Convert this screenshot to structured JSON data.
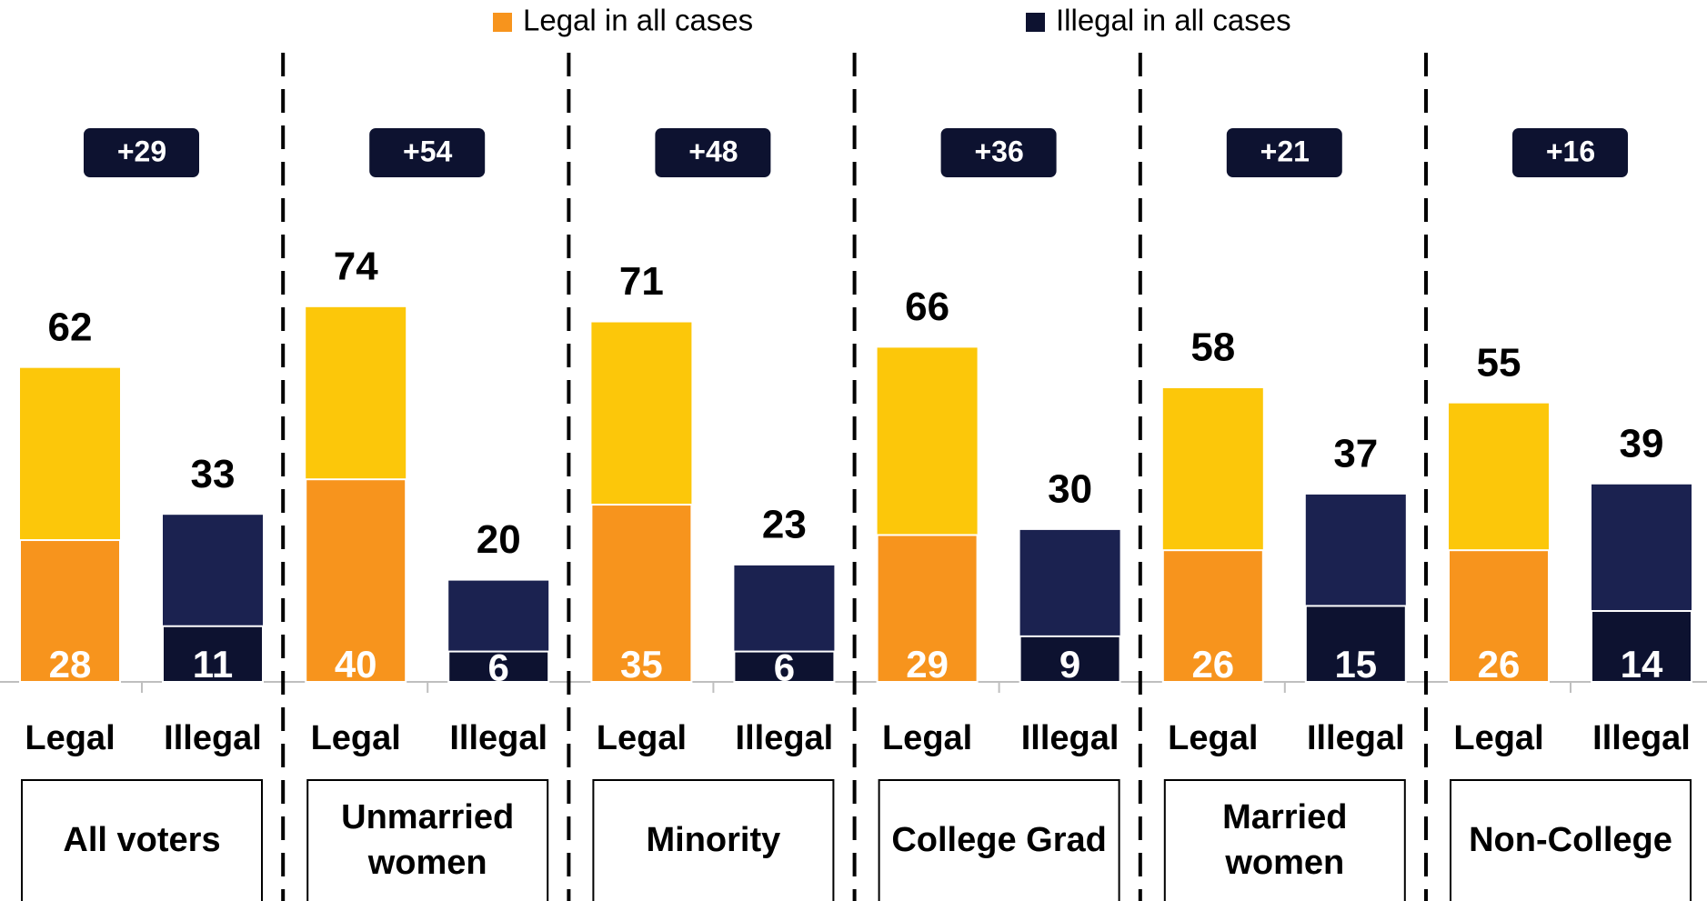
{
  "chart_data": {
    "type": "bar",
    "categories": [
      "All voters",
      "Unmarried women",
      "Minority",
      "College Grad",
      "Married women",
      "Non-College"
    ],
    "bar_labels": [
      "Legal",
      "Illegal"
    ],
    "legend": [
      "Legal in all cases",
      "Illegal in all cases"
    ],
    "legal_total": [
      62,
      74,
      71,
      66,
      58,
      55
    ],
    "legal_all_cases": [
      28,
      40,
      35,
      29,
      26,
      26
    ],
    "illegal_total": [
      33,
      20,
      23,
      30,
      37,
      39
    ],
    "illegal_all_cases": [
      11,
      6,
      6,
      9,
      15,
      14
    ],
    "margins": [
      29,
      54,
      48,
      36,
      21,
      16
    ],
    "margin_labels": [
      "+29",
      "+54",
      "+48",
      "+36",
      "+21",
      "+16"
    ],
    "colors": {
      "legal_total": "#fcc70a",
      "legal_all_cases": "#f7941d",
      "illegal_total": "#1b2250",
      "illegal_all_cases": "#0d1230",
      "margin_box": "#0d1230"
    },
    "ylim": [
      0,
      100
    ]
  }
}
